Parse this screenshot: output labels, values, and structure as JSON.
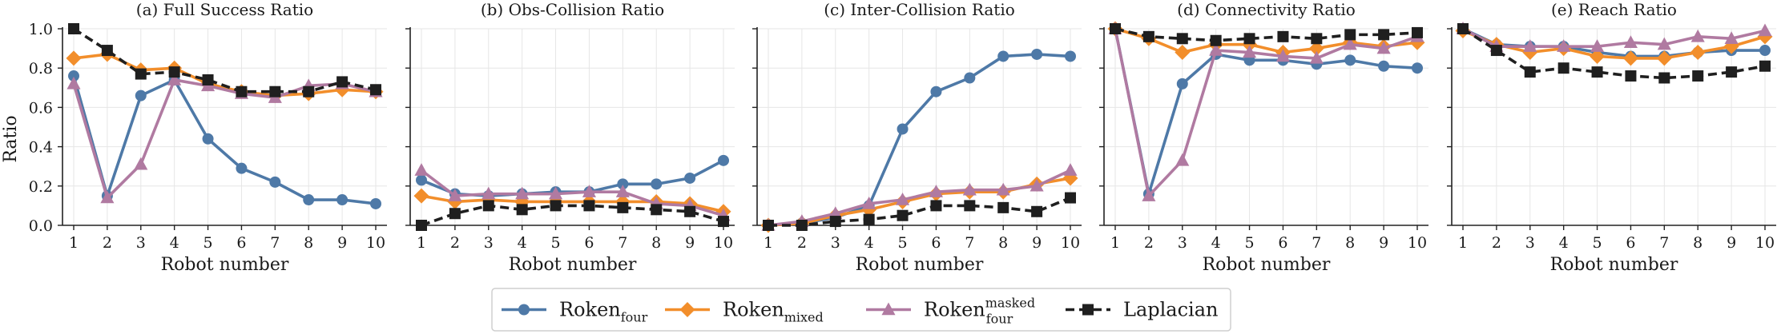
{
  "figure": {
    "ylabel": "Ratio",
    "xlabel": "Robot number"
  },
  "legend": [
    {
      "base": "Roken",
      "sub": "four",
      "sup": "",
      "color": "#4e79a7",
      "marker": "circle",
      "dash": false
    },
    {
      "base": "Roken",
      "sub": "mixed",
      "sup": "",
      "color": "#f28e2b",
      "marker": "diamond",
      "dash": false
    },
    {
      "base": "Roken",
      "sub": "four",
      "sup": "masked",
      "color": "#b07aa1",
      "marker": "triangle",
      "dash": false
    },
    {
      "base": "Laplacian",
      "sub": "",
      "sup": "",
      "color": "#1f1f1f",
      "marker": "square",
      "dash": true
    }
  ],
  "chart_data": [
    {
      "type": "line",
      "title": "(a) Full Success Ratio",
      "xlabel": "Robot number",
      "ylabel": "Ratio",
      "x": [
        1,
        2,
        3,
        4,
        5,
        6,
        7,
        8,
        9,
        10
      ],
      "ylim": [
        0,
        1.0
      ],
      "yticks": [
        "0.0",
        "0.2",
        "0.4",
        "0.6",
        "0.8",
        "1.0"
      ],
      "series": [
        {
          "name": "Roken_four",
          "values": [
            0.76,
            0.15,
            0.66,
            0.74,
            0.44,
            0.29,
            0.22,
            0.13,
            0.13,
            0.11
          ]
        },
        {
          "name": "Roken_mixed",
          "values": [
            0.85,
            0.87,
            0.79,
            0.8,
            0.72,
            0.68,
            0.66,
            0.67,
            0.69,
            0.68
          ]
        },
        {
          "name": "Roken_four^masked",
          "values": [
            0.72,
            0.14,
            0.31,
            0.74,
            0.71,
            0.67,
            0.65,
            0.71,
            0.72,
            0.68
          ]
        },
        {
          "name": "Laplacian",
          "values": [
            1.0,
            0.89,
            0.77,
            0.78,
            0.74,
            0.68,
            0.68,
            0.68,
            0.73,
            0.69
          ]
        }
      ]
    },
    {
      "type": "line",
      "title": "(b) Obs-Collision Ratio",
      "xlabel": "Robot number",
      "ylabel": "",
      "x": [
        1,
        2,
        3,
        4,
        5,
        6,
        7,
        8,
        9,
        10
      ],
      "ylim": [
        0,
        1.0
      ],
      "series": [
        {
          "name": "Roken_four",
          "values": [
            0.23,
            0.16,
            0.15,
            0.16,
            0.17,
            0.17,
            0.21,
            0.21,
            0.24,
            0.33
          ]
        },
        {
          "name": "Roken_mixed",
          "values": [
            0.15,
            0.12,
            0.13,
            0.12,
            0.12,
            0.12,
            0.12,
            0.12,
            0.11,
            0.07
          ]
        },
        {
          "name": "Roken_four^masked",
          "values": [
            0.28,
            0.15,
            0.16,
            0.16,
            0.16,
            0.17,
            0.17,
            0.11,
            0.1,
            0.05
          ]
        },
        {
          "name": "Laplacian",
          "values": [
            0.0,
            0.06,
            0.1,
            0.08,
            0.1,
            0.1,
            0.09,
            0.08,
            0.07,
            0.02
          ]
        }
      ]
    },
    {
      "type": "line",
      "title": "(c) Inter-Collision Ratio",
      "xlabel": "Robot number",
      "ylabel": "",
      "x": [
        1,
        2,
        3,
        4,
        5,
        6,
        7,
        8,
        9,
        10
      ],
      "ylim": [
        0,
        1.0
      ],
      "series": [
        {
          "name": "Roken_four",
          "values": [
            0.0,
            0.01,
            0.04,
            0.1,
            0.49,
            0.68,
            0.75,
            0.86,
            0.87,
            0.86
          ]
        },
        {
          "name": "Roken_mixed",
          "values": [
            0.0,
            0.01,
            0.05,
            0.08,
            0.12,
            0.16,
            0.17,
            0.17,
            0.21,
            0.24
          ]
        },
        {
          "name": "Roken_four^masked",
          "values": [
            0.0,
            0.02,
            0.06,
            0.11,
            0.13,
            0.17,
            0.18,
            0.18,
            0.2,
            0.28
          ]
        },
        {
          "name": "Laplacian",
          "values": [
            0.0,
            0.0,
            0.02,
            0.03,
            0.05,
            0.1,
            0.1,
            0.09,
            0.07,
            0.14
          ]
        }
      ]
    },
    {
      "type": "line",
      "title": "(d) Connectivity Ratio",
      "xlabel": "Robot number",
      "ylabel": "",
      "x": [
        1,
        2,
        3,
        4,
        5,
        6,
        7,
        8,
        9,
        10
      ],
      "ylim": [
        0,
        1.0
      ],
      "series": [
        {
          "name": "Roken_four",
          "values": [
            1.0,
            0.16,
            0.72,
            0.87,
            0.84,
            0.84,
            0.82,
            0.84,
            0.81,
            0.8
          ]
        },
        {
          "name": "Roken_mixed",
          "values": [
            1.0,
            0.95,
            0.88,
            0.92,
            0.92,
            0.88,
            0.9,
            0.93,
            0.91,
            0.93
          ]
        },
        {
          "name": "Roken_four^masked",
          "values": [
            1.0,
            0.15,
            0.33,
            0.89,
            0.88,
            0.86,
            0.85,
            0.92,
            0.9,
            0.96
          ]
        },
        {
          "name": "Laplacian",
          "values": [
            1.0,
            0.96,
            0.95,
            0.94,
            0.95,
            0.96,
            0.95,
            0.97,
            0.97,
            0.98
          ]
        }
      ]
    },
    {
      "type": "line",
      "title": "(e) Reach Ratio",
      "xlabel": "Robot number",
      "ylabel": "",
      "x": [
        1,
        2,
        3,
        4,
        5,
        6,
        7,
        8,
        9,
        10
      ],
      "ylim": [
        0,
        1.0
      ],
      "series": [
        {
          "name": "Roken_four",
          "values": [
            1.0,
            0.92,
            0.91,
            0.91,
            0.88,
            0.86,
            0.86,
            0.88,
            0.89,
            0.89
          ]
        },
        {
          "name": "Roken_mixed",
          "values": [
            0.99,
            0.92,
            0.88,
            0.9,
            0.86,
            0.85,
            0.85,
            0.88,
            0.91,
            0.96
          ]
        },
        {
          "name": "Roken_four^masked",
          "values": [
            1.0,
            0.91,
            0.91,
            0.91,
            0.91,
            0.93,
            0.92,
            0.96,
            0.95,
            0.99
          ]
        },
        {
          "name": "Laplacian",
          "values": [
            1.0,
            0.89,
            0.78,
            0.8,
            0.78,
            0.76,
            0.75,
            0.76,
            0.78,
            0.81
          ]
        }
      ]
    }
  ]
}
